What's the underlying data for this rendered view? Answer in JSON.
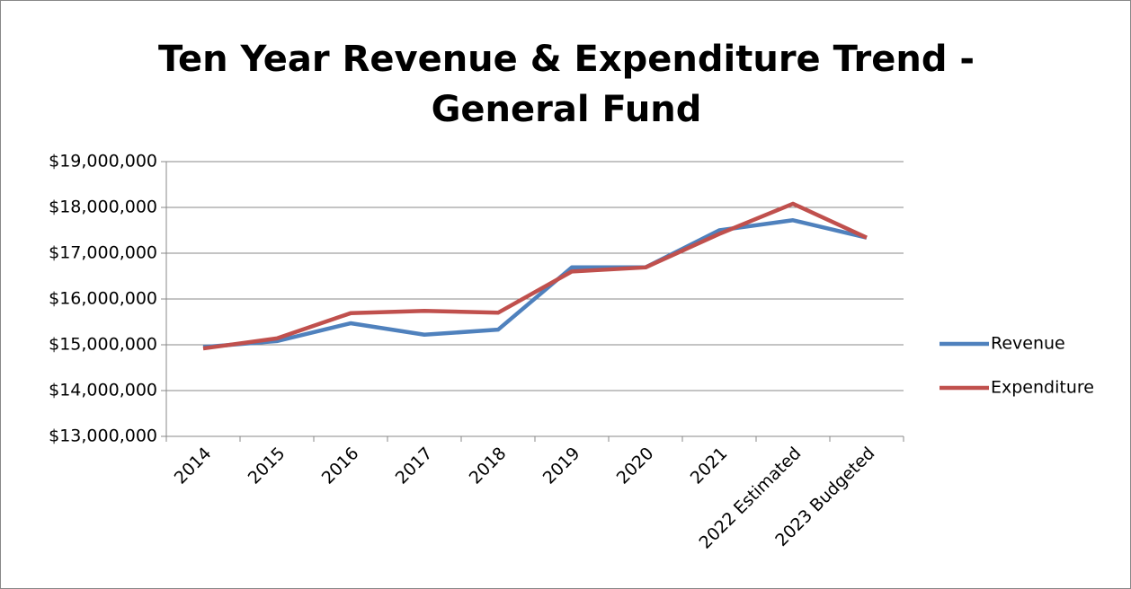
{
  "chart_data": {
    "type": "line",
    "title": "Ten Year Revenue & Expenditure Trend - General Fund",
    "categories": [
      "2014",
      "2015",
      "2016",
      "2017",
      "2018",
      "2019",
      "2020",
      "2021",
      "2022 Estimated",
      "2023 Budgeted"
    ],
    "series": [
      {
        "name": "Revenue",
        "color": "#4f81bd",
        "values": [
          14950000,
          15080000,
          15470000,
          15220000,
          15330000,
          16690000,
          16690000,
          17500000,
          17720000,
          17340000
        ]
      },
      {
        "name": "Expenditure",
        "color": "#c0504d",
        "values": [
          14920000,
          15140000,
          15690000,
          15740000,
          15700000,
          16600000,
          16690000,
          17420000,
          18080000,
          17340000
        ]
      }
    ],
    "ylim": [
      13000000,
      19000000
    ],
    "yticks": [
      {
        "value": 13000000,
        "label": "$13,000,000"
      },
      {
        "value": 14000000,
        "label": "$14,000,000"
      },
      {
        "value": 15000000,
        "label": "$15,000,000"
      },
      {
        "value": 16000000,
        "label": "$16,000,000"
      },
      {
        "value": 17000000,
        "label": "$17,000,000"
      },
      {
        "value": 18000000,
        "label": "$18,000,000"
      },
      {
        "value": 19000000,
        "label": "$19,000,000"
      }
    ],
    "grid": true,
    "legend": "right"
  }
}
